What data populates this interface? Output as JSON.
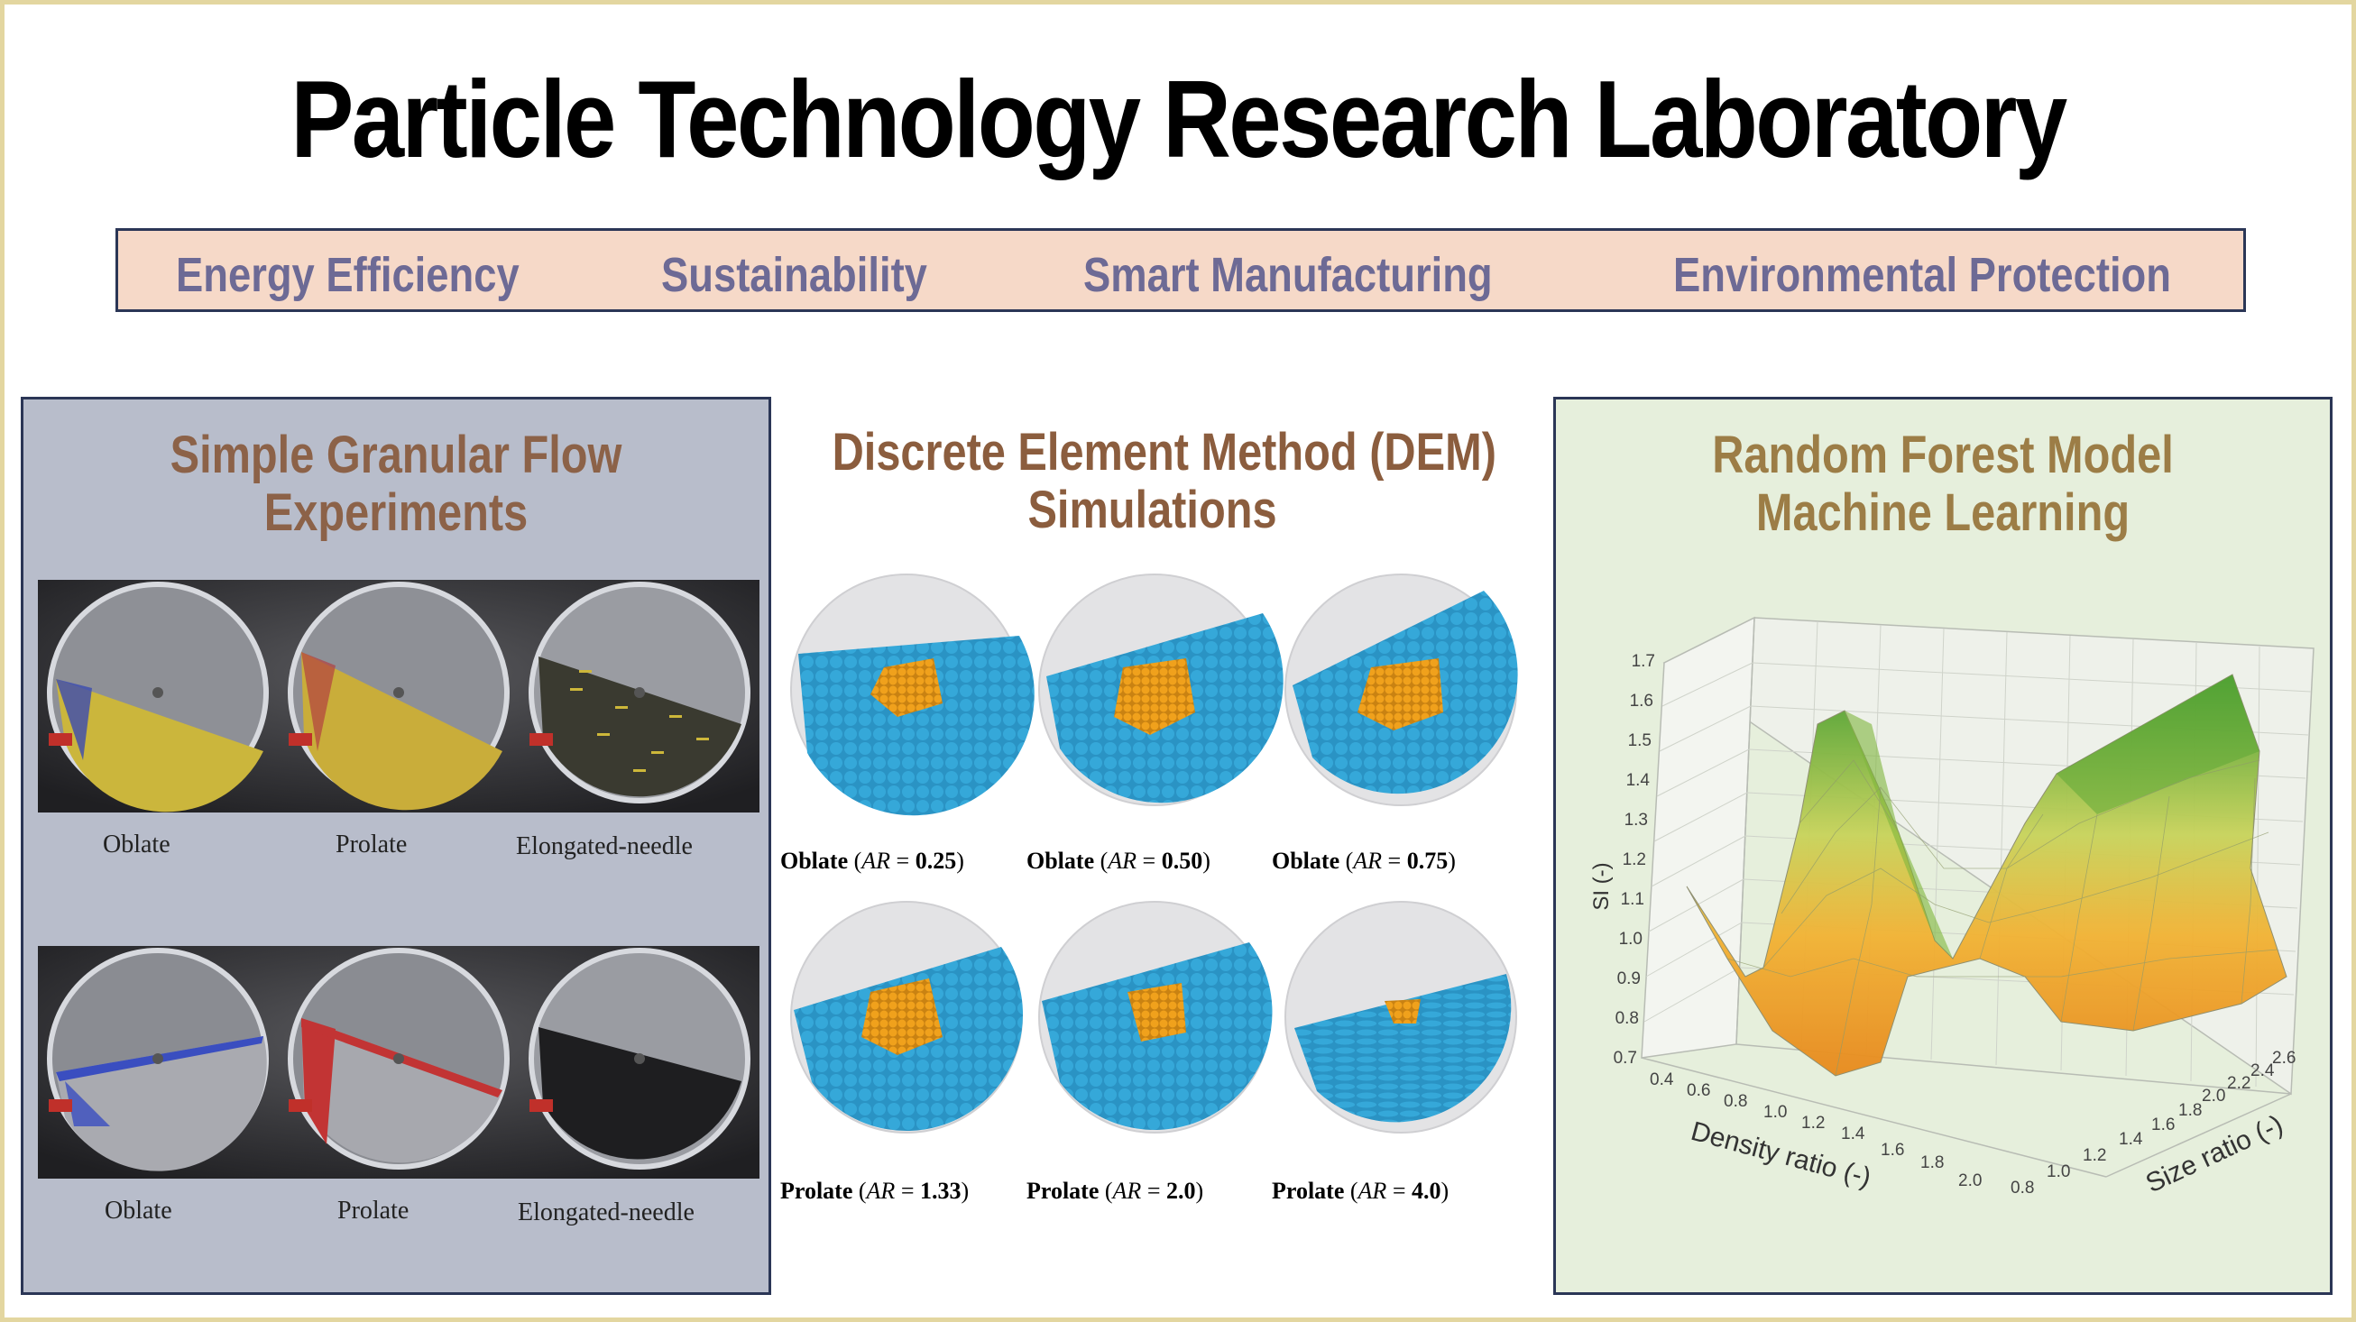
{
  "title": "Particle Technology Research Laboratory",
  "themes": [
    "Energy Efficiency",
    "Sustainability",
    "Smart Manufacturing",
    "Environmental Protection"
  ],
  "experiments": {
    "title_line1": "Simple Granular Flow",
    "title_line2": "Experiments",
    "row1": [
      "Oblate",
      "Prolate",
      "Elongated-needle"
    ],
    "row2": [
      "Oblate",
      "Prolate",
      "Elongated-needle"
    ]
  },
  "dem": {
    "title_line1": "Discrete Element Method (DEM)",
    "title_line2": "Simulations",
    "captions": [
      {
        "shape": "Oblate",
        "ar_symbol": "AR",
        "ar_value": "0.25"
      },
      {
        "shape": "Oblate",
        "ar_symbol": "AR",
        "ar_value": "0.50"
      },
      {
        "shape": "Oblate",
        "ar_symbol": "AR",
        "ar_value": "0.75"
      },
      {
        "shape": "Prolate",
        "ar_symbol": "AR",
        "ar_value": "1.33"
      },
      {
        "shape": "Prolate",
        "ar_symbol": "AR",
        "ar_value": "2.0"
      },
      {
        "shape": "Prolate",
        "ar_symbol": "AR",
        "ar_value": "4.0"
      }
    ]
  },
  "ml": {
    "title_line1": "Random Forest Model",
    "title_line2": "Machine Learning",
    "z_label": "SI (-)",
    "x_label": "Density ratio (-)",
    "y_label": "Size ratio (-)",
    "z_ticks": [
      "0.7",
      "0.8",
      "0.9",
      "1.0",
      "1.1",
      "1.2",
      "1.3",
      "1.4",
      "1.5",
      "1.6",
      "1.7"
    ],
    "x_ticks": [
      "0.4",
      "0.6",
      "0.8",
      "1.0",
      "1.2",
      "1.4",
      "1.6",
      "1.8",
      "2.0"
    ],
    "y_ticks": [
      "0.8",
      "1.0",
      "1.2",
      "1.4",
      "1.6",
      "1.8",
      "2.0",
      "2.2",
      "2.4",
      "2.6"
    ]
  },
  "colors": {
    "title": "#000000",
    "theme_text": "#6d6a95",
    "theme_bg": "#f6d9c8",
    "particle_blue": "#2f9fd0",
    "particle_orange": "#f0a11c"
  }
}
